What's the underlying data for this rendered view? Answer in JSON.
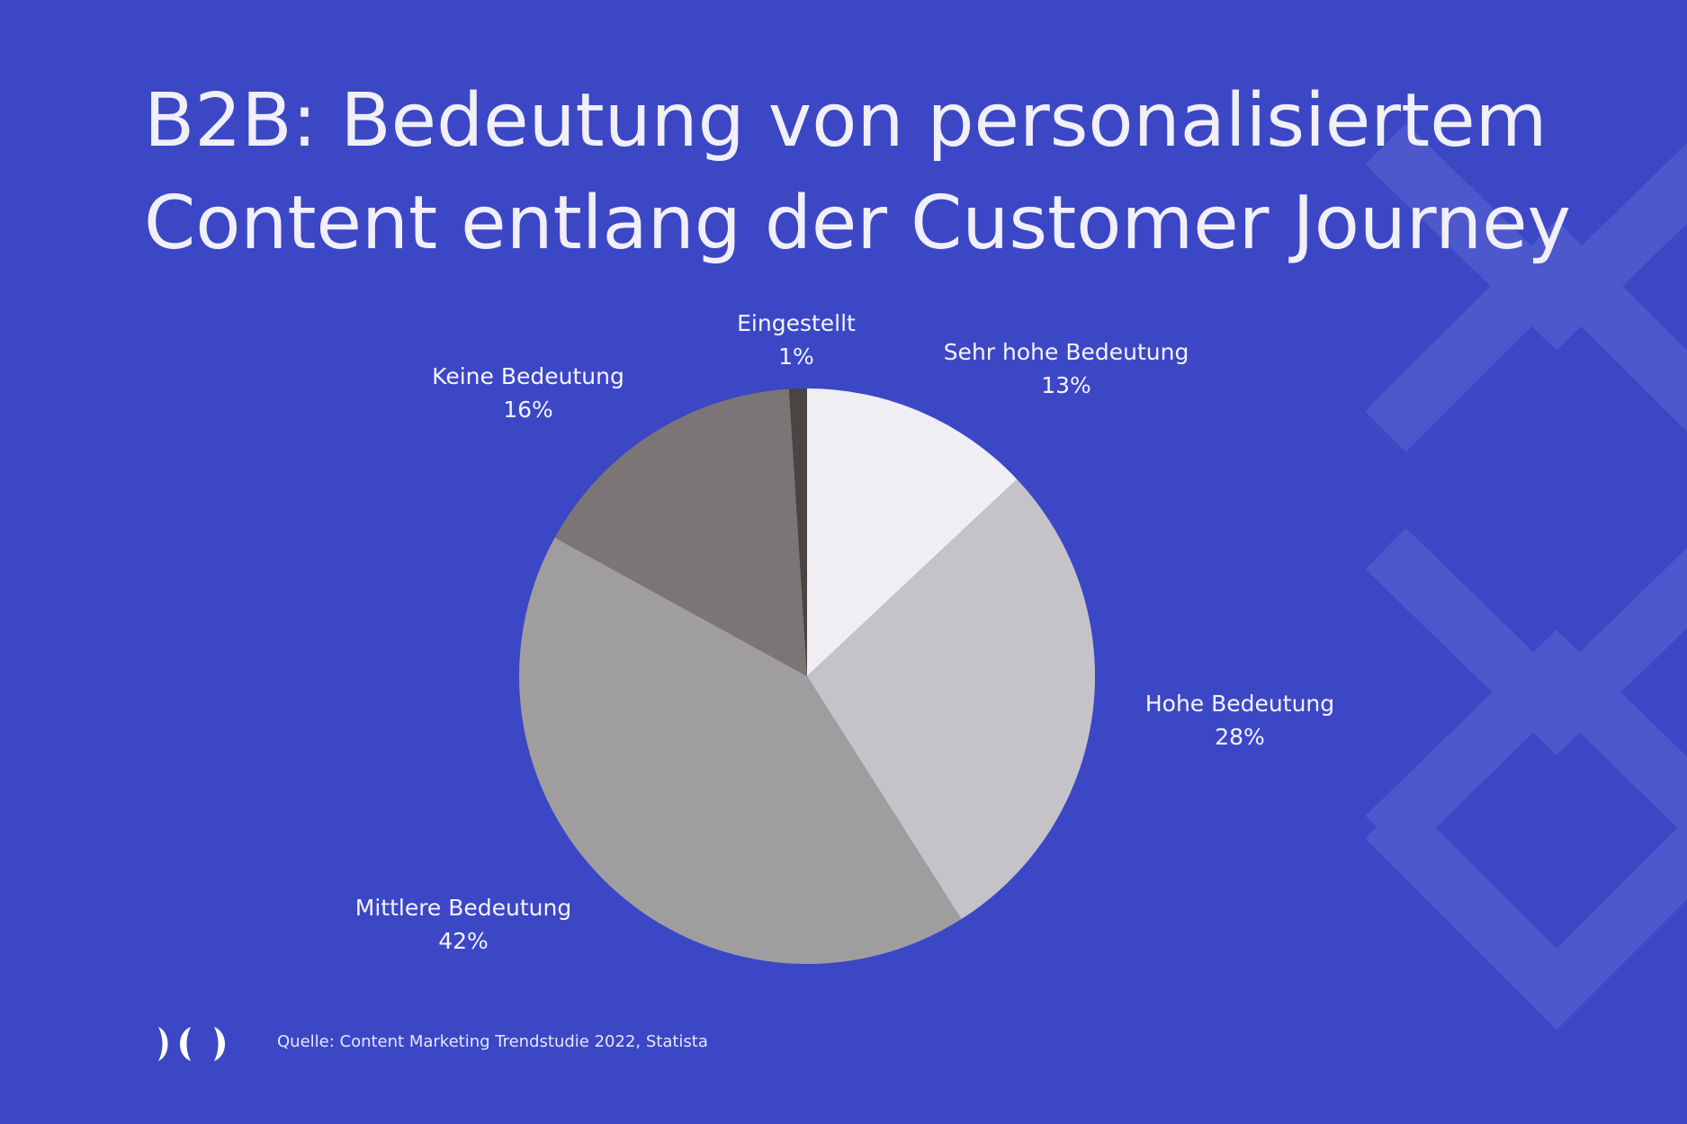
{
  "title_line1": "B2B: Bedeutung von personalisiertem",
  "title_line2": "Content entlang der Customer Journey",
  "source": "Quelle: Content Marketing Trendstudie 2022, Statista",
  "colors": {
    "background": "#3c47c6",
    "decoration": "#4d58cc",
    "text": "#f1eff7"
  },
  "logo_icon": "brand-logo-icon",
  "chart_data": {
    "type": "pie",
    "title": "B2B: Bedeutung von personalisiertem Content entlang der Customer Journey",
    "slices": [
      {
        "label": "Sehr hohe Bedeutung",
        "value": 13,
        "display": "13%",
        "color": "#efeef3"
      },
      {
        "label": "Hohe Bedeutung",
        "value": 28,
        "display": "28%",
        "color": "#c6c3c8"
      },
      {
        "label": "Mittlere Bedeutung",
        "value": 42,
        "display": "42%",
        "color": "#a09d9e"
      },
      {
        "label": "Keine Bedeutung",
        "value": 16,
        "display": "16%",
        "color": "#7b7675"
      },
      {
        "label": "Eingestellt",
        "value": 1,
        "display": "1%",
        "color": "#4a4443"
      }
    ],
    "start": "12 o'clock",
    "direction": "clockwise"
  }
}
